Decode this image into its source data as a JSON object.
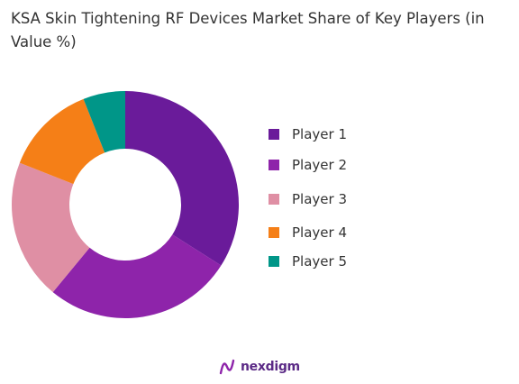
{
  "chart_data": {
    "type": "pie",
    "variant": "donut",
    "title": "KSA Skin Tightening RF Devices Market Share of Key Players (in Value %)",
    "unit": "%",
    "categories": [
      "Player 1",
      "Player 2",
      "Player 3",
      "Player 4",
      "Player 5"
    ],
    "values": [
      34,
      27,
      20,
      13,
      6
    ],
    "colors": [
      "#6a1b9a",
      "#8e24aa",
      "#df8fa4",
      "#f57f17",
      "#009688"
    ],
    "legend": "right"
  },
  "brand": {
    "name": "nexdigm",
    "color": "#5b2a86"
  }
}
